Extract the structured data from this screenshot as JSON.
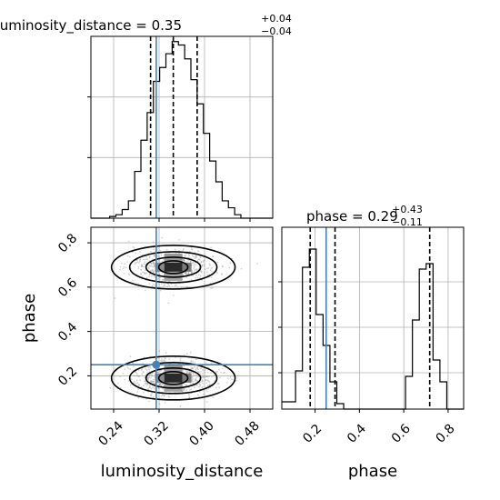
{
  "chart_data": {
    "type": "corner",
    "parameters": [
      "luminosity_distance",
      "phase"
    ],
    "x_axis_labels": [
      "luminosity_distance",
      "phase"
    ],
    "y_axis_label": "phase",
    "truth": {
      "luminosity_distance": 0.315,
      "phase": 0.25
    },
    "colors": {
      "truth": "#4682b4",
      "hist": "#000000",
      "quantiles": "#000000",
      "grid": "#b0b0b0"
    },
    "panels": {
      "luminosity_distance_hist": {
        "title_main": "luminosity_distance = 0.35",
        "title_sup": "+0.04",
        "title_sub": "−0.04",
        "xlim": [
          0.2,
          0.52
        ],
        "xticks": [
          0.24,
          0.32,
          0.4,
          0.48
        ],
        "quantiles": [
          0.305,
          0.345,
          0.387
        ],
        "bin_edges": [
          0.2,
          0.211,
          0.222,
          0.233,
          0.244,
          0.255,
          0.266,
          0.277,
          0.288,
          0.299,
          0.31,
          0.321,
          0.332,
          0.343,
          0.354,
          0.365,
          0.376,
          0.387,
          0.398,
          0.409,
          0.42,
          0.431,
          0.442,
          0.453,
          0.464,
          0.475,
          0.486,
          0.497,
          0.508,
          0.52
        ],
        "counts": [
          0,
          0,
          0,
          1,
          2,
          5,
          10,
          27,
          45,
          61,
          79,
          87,
          95,
          102,
          100,
          92,
          80,
          66,
          49,
          33,
          21,
          10,
          6,
          2,
          0,
          0,
          0,
          0,
          0
        ],
        "ymax": 105
      },
      "phase_hist": {
        "title_main": "phase = 0.29",
        "title_sup": "+0.43",
        "title_sub": "−0.11",
        "xlim": [
          0.05,
          0.87
        ],
        "xticks": [
          0.2,
          0.4,
          0.6,
          0.8
        ],
        "quantiles": [
          0.178,
          0.29,
          0.717
        ],
        "bin_edges": [
          0.05,
          0.081,
          0.112,
          0.143,
          0.174,
          0.205,
          0.236,
          0.267,
          0.298,
          0.329,
          0.36,
          0.391,
          0.422,
          0.453,
          0.484,
          0.515,
          0.546,
          0.577,
          0.608,
          0.639,
          0.67,
          0.701,
          0.732,
          0.763,
          0.794,
          0.825,
          0.856,
          0.87
        ],
        "counts": [
          4,
          4,
          21,
          78,
          88,
          52,
          35,
          15,
          3,
          0,
          0,
          0,
          0,
          0,
          0,
          0,
          0,
          0,
          18,
          49,
          77,
          80,
          27,
          15,
          0,
          0,
          0
        ],
        "ymax": 100
      },
      "joint": {
        "xlim": [
          0.2,
          0.52
        ],
        "ylim": [
          0.05,
          0.87
        ],
        "xticks": [
          0.24,
          0.32,
          0.4,
          0.48
        ],
        "yticks": [
          0.2,
          0.4,
          0.6,
          0.8
        ],
        "modes": [
          {
            "x": 0.345,
            "y": 0.69,
            "sx": 0.038,
            "sy": 0.04
          },
          {
            "x": 0.345,
            "y": 0.19,
            "sx": 0.038,
            "sy": 0.04
          }
        ]
      }
    }
  }
}
